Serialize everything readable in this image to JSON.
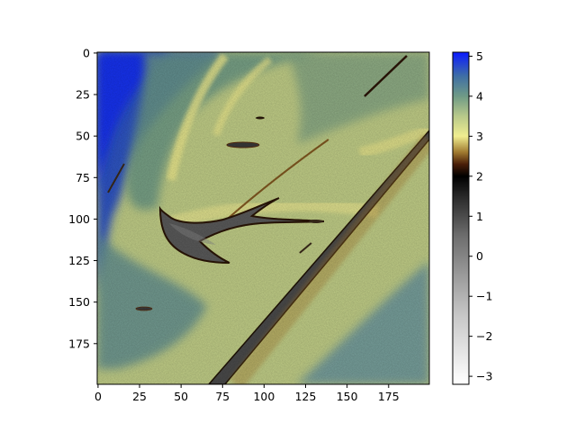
{
  "chart_data": {
    "type": "heatmap",
    "title": "",
    "xlabel": "",
    "ylabel": "",
    "image_shape": [
      200,
      200
    ],
    "xlim": [
      -0.5,
      199.5
    ],
    "ylim": [
      199.5,
      -0.5
    ],
    "x_ticks": [
      0,
      25,
      50,
      75,
      100,
      125,
      150,
      175
    ],
    "y_ticks": [
      0,
      25,
      50,
      75,
      100,
      125,
      150,
      175
    ],
    "grid": false,
    "colormap": "gist_stern-like (white → gray → black → brown → yellow → green/teal → blue)",
    "colorbar": {
      "vmin": -3.2,
      "vmax": 5.1,
      "ticks": [
        -3,
        -2,
        -1,
        0,
        1,
        2,
        3,
        4,
        5
      ],
      "stops": [
        {
          "value": -3.2,
          "color": "#ffffff"
        },
        {
          "value": -1.5,
          "color": "#c8c8c8"
        },
        {
          "value": 0.5,
          "color": "#6e6e6e"
        },
        {
          "value": 1.4,
          "color": "#303030"
        },
        {
          "value": 2.0,
          "color": "#000000"
        },
        {
          "value": 2.3,
          "color": "#4a1e08"
        },
        {
          "value": 2.6,
          "color": "#a07a30"
        },
        {
          "value": 3.0,
          "color": "#f0ee90"
        },
        {
          "value": 3.5,
          "color": "#b8c98a"
        },
        {
          "value": 4.0,
          "color": "#6f9a86"
        },
        {
          "value": 4.5,
          "color": "#3f6fa5"
        },
        {
          "value": 5.1,
          "color": "#0a1aff"
        }
      ]
    },
    "field": {
      "background_value": 3.4,
      "upper_left_blue_value": 4.9,
      "tongue_value": 0.2,
      "needle_value": 0.8,
      "blue_band_value": 4.4
    }
  }
}
